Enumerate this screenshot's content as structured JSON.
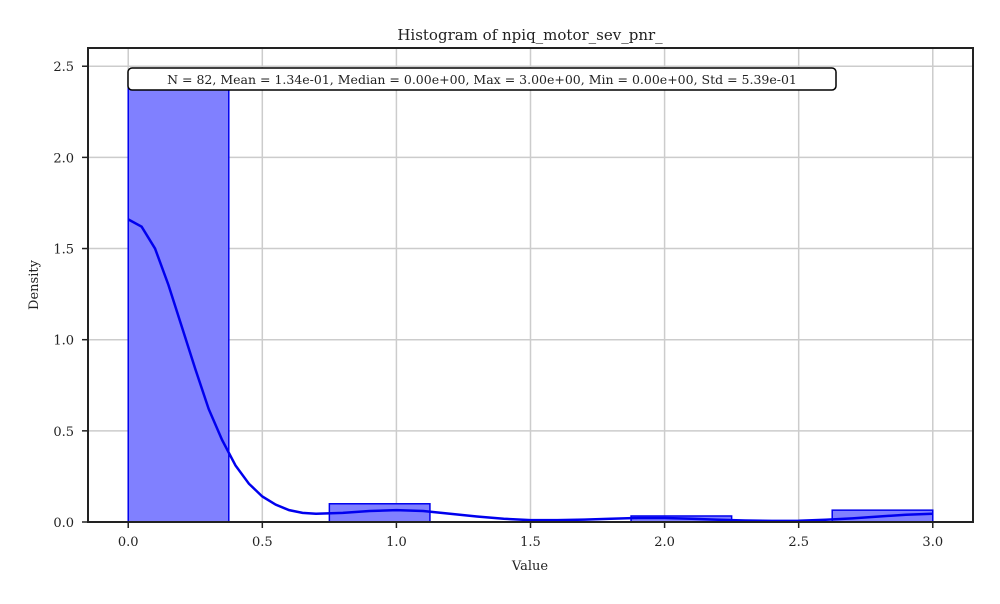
{
  "chart_data": {
    "type": "bar",
    "title": "Histogram of npiq_motor_sev_pnr_",
    "xlabel": "Value",
    "ylabel": "Density",
    "xlim": [
      -0.15,
      3.15
    ],
    "ylim": [
      0,
      2.6
    ],
    "xticks": [
      0.0,
      0.5,
      1.0,
      1.5,
      2.0,
      2.5,
      3.0
    ],
    "xtick_labels": [
      "0.0",
      "0.5",
      "1.0",
      "1.5",
      "2.0",
      "2.5",
      "3.0"
    ],
    "yticks": [
      0.0,
      0.5,
      1.0,
      1.5,
      2.0,
      2.5
    ],
    "ytick_labels": [
      "0.0",
      "0.5",
      "1.0",
      "1.5",
      "2.0",
      "2.5"
    ],
    "grid": true,
    "stats_text": "N = 82, Mean = 1.34e-01, Median = 0.00e+00, Max = 3.00e+00, Min = 0.00e+00, Std = 5.39e-01",
    "bins": [
      {
        "start": 0.0,
        "end": 0.375,
        "density": 2.44
      },
      {
        "start": 0.75,
        "end": 1.125,
        "density": 0.1
      },
      {
        "start": 1.875,
        "end": 2.25,
        "density": 0.033
      },
      {
        "start": 2.625,
        "end": 3.0,
        "density": 0.065
      }
    ],
    "kde": {
      "x": [
        0.0,
        0.05,
        0.1,
        0.15,
        0.2,
        0.25,
        0.3,
        0.35,
        0.4,
        0.45,
        0.5,
        0.55,
        0.6,
        0.65,
        0.7,
        0.8,
        0.9,
        1.0,
        1.1,
        1.2,
        1.3,
        1.4,
        1.5,
        1.6,
        1.7,
        1.8,
        1.9,
        2.0,
        2.1,
        2.2,
        2.3,
        2.4,
        2.5,
        2.6,
        2.7,
        2.8,
        2.9,
        3.0
      ],
      "y": [
        1.66,
        1.62,
        1.5,
        1.3,
        1.07,
        0.84,
        0.62,
        0.45,
        0.31,
        0.21,
        0.14,
        0.095,
        0.065,
        0.05,
        0.045,
        0.05,
        0.06,
        0.065,
        0.06,
        0.045,
        0.03,
        0.018,
        0.01,
        0.01,
        0.013,
        0.018,
        0.022,
        0.022,
        0.018,
        0.012,
        0.008,
        0.006,
        0.007,
        0.012,
        0.02,
        0.03,
        0.04,
        0.045
      ]
    },
    "colors": {
      "bar_fill": "#8080ff",
      "bar_edge": "#0000ee",
      "kde_line": "#0000ee",
      "grid": "#cccccc",
      "axes": "#222222"
    }
  }
}
